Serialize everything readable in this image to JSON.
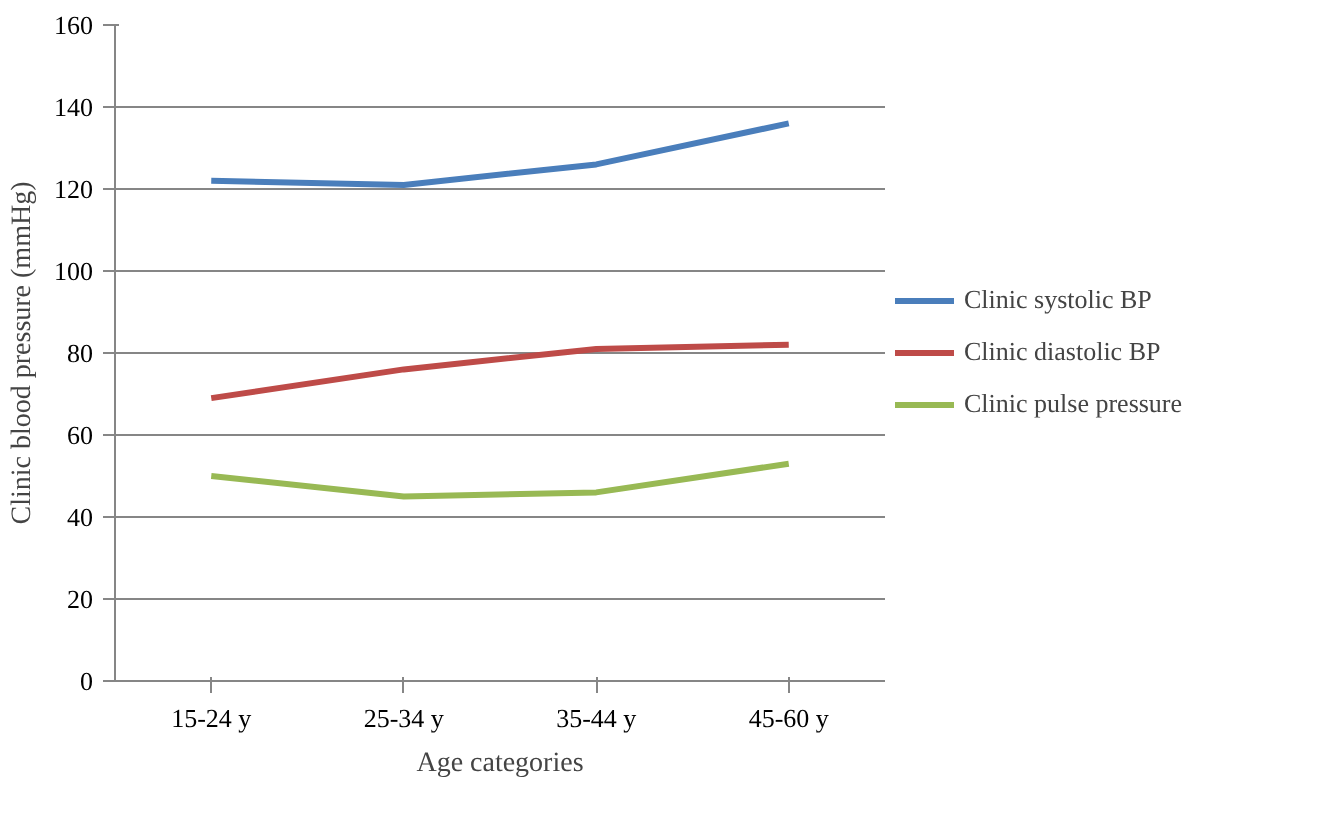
{
  "chart_data": {
    "type": "line",
    "xlabel": "Age categories",
    "ylabel": "Clinic blood pressure (mmHg)",
    "categories": [
      "15-24 y",
      "25-34 y",
      "35-44 y",
      "45-60 y"
    ],
    "series": [
      {
        "name": "Clinic systolic BP",
        "color": "#4a7ebb",
        "values": [
          122,
          121,
          126,
          136
        ]
      },
      {
        "name": "Clinic diastolic BP",
        "color": "#be4b48",
        "values": [
          69,
          76,
          81,
          82
        ]
      },
      {
        "name": "Clinic pulse pressure",
        "color": "#98b954",
        "values": [
          50,
          45,
          46,
          53
        ]
      }
    ],
    "ylim": [
      0,
      160
    ],
    "yticks": [
      0,
      20,
      40,
      60,
      80,
      100,
      120,
      140,
      160
    ],
    "grid": "y",
    "legend": "right",
    "marker": "none",
    "line_style": "solid"
  }
}
